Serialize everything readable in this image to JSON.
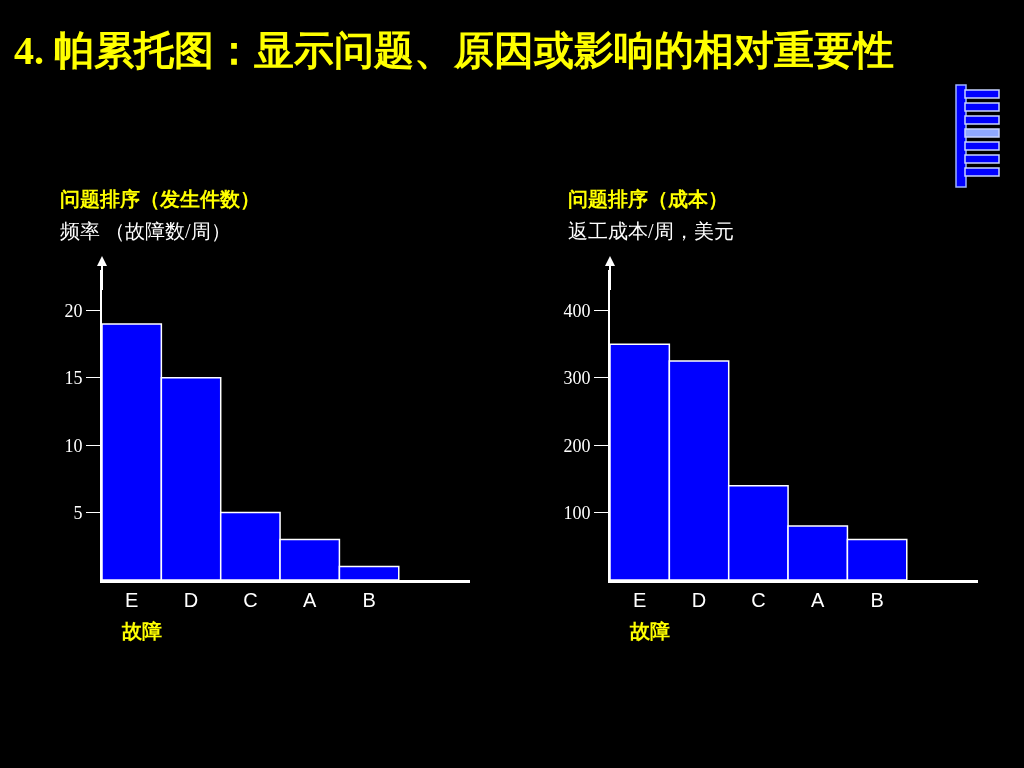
{
  "chart_data": [
    {
      "type": "bar",
      "title": "4. 帕累托图：显示问题、原因或影响的相对重要性",
      "subtitle": "问题排序（发生件数）",
      "ylabel": "频率 （故障数/周）",
      "xlabel": "故障",
      "categories": [
        "E",
        "D",
        "C",
        "A",
        "B"
      ],
      "values": [
        19,
        15,
        5,
        3,
        1
      ],
      "color": "#0000ff",
      "ylim": [
        0,
        23
      ],
      "yticks": [
        5,
        10,
        15,
        20
      ],
      "grid": false,
      "legend": false
    },
    {
      "type": "bar",
      "subtitle": "问题排序（成本）",
      "ylabel": "返工成本/周，美元",
      "xlabel": "故障",
      "categories": [
        "E",
        "D",
        "C",
        "A",
        "B"
      ],
      "values": [
        350,
        325,
        140,
        80,
        60
      ],
      "color": "#0000ff",
      "ylim": [
        0,
        460
      ],
      "yticks": [
        100,
        200,
        300,
        400
      ],
      "grid": false,
      "legend": false
    }
  ]
}
